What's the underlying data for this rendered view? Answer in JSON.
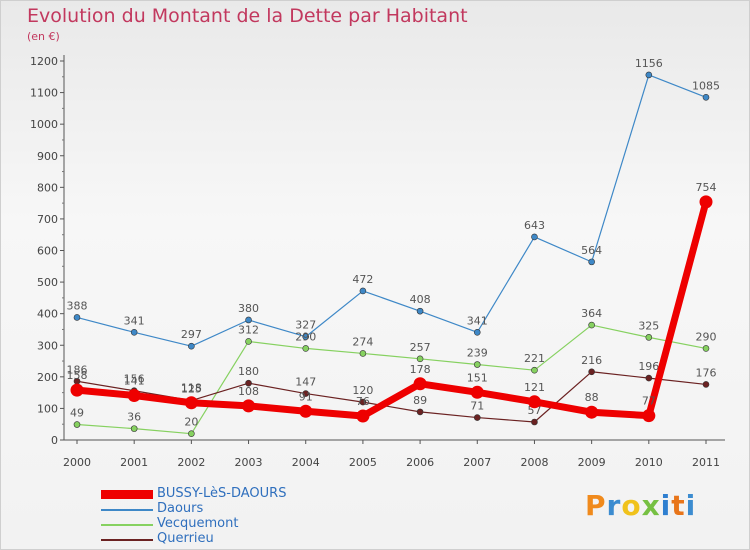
{
  "title": "Evolution du Montant de la Dette par Habitant",
  "unit": "(en €)",
  "logo": "Proxiti",
  "chart_data": {
    "type": "line",
    "title": "Evolution du Montant de la Dette par Habitant",
    "ylabel": "(en €)",
    "xlabel": "",
    "x": [
      "2000",
      "2001",
      "2002",
      "2003",
      "2004",
      "2005",
      "2006",
      "2007",
      "2008",
      "2009",
      "2010",
      "2011"
    ],
    "ylim": [
      0,
      1200
    ],
    "yticks": [
      0,
      100,
      200,
      300,
      400,
      500,
      600,
      700,
      800,
      900,
      1000,
      1100,
      1200
    ],
    "grid": false,
    "legend_position": "bottom-left",
    "series": [
      {
        "name": "BUSSY-LèS-DAOURS",
        "color": "#ee0000",
        "values": [
          158,
          141,
          118,
          108,
          91,
          76,
          178,
          151,
          121,
          88,
          77,
          754
        ]
      },
      {
        "name": "Daours",
        "color": "#3e88c7",
        "values": [
          388,
          341,
          297,
          380,
          327,
          472,
          408,
          341,
          643,
          564,
          1156,
          1085
        ]
      },
      {
        "name": "Vecquemont",
        "color": "#86d160",
        "values": [
          49,
          36,
          20,
          312,
          290,
          274,
          257,
          239,
          221,
          364,
          325,
          290
        ]
      },
      {
        "name": "Querrieu",
        "color": "#6b2222",
        "values": [
          186,
          156,
          125,
          180,
          147,
          120,
          89,
          71,
          57,
          216,
          196,
          176
        ]
      }
    ]
  }
}
